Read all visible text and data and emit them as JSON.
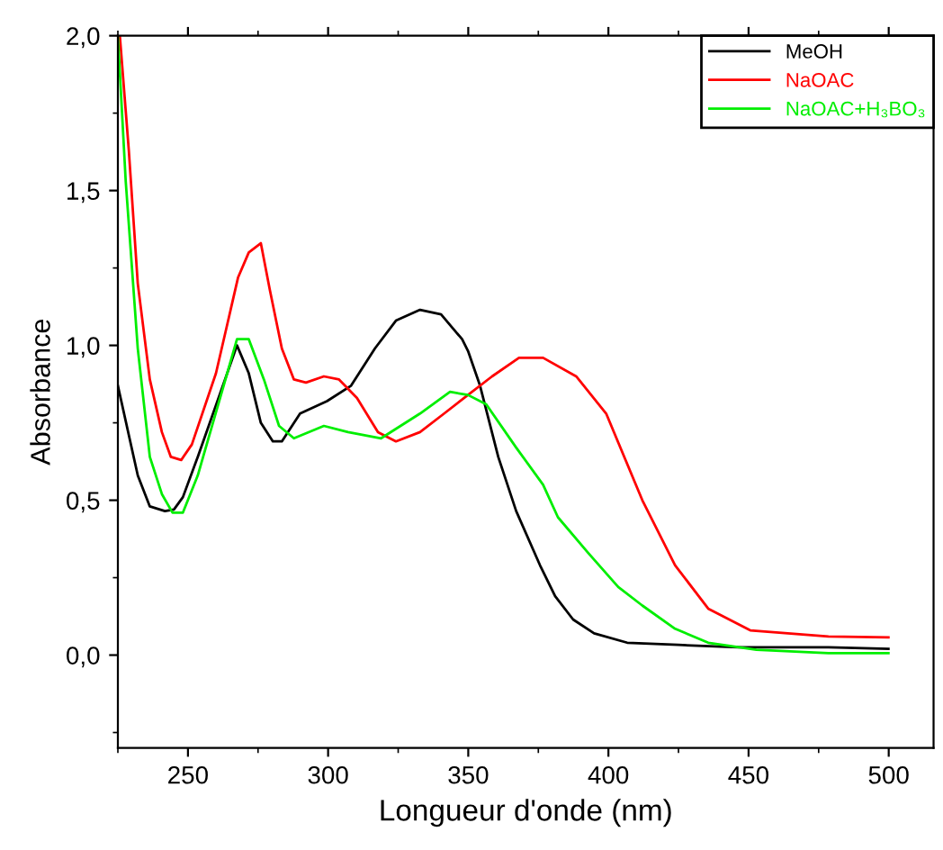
{
  "chart_data": {
    "type": "line",
    "xlabel": "Longueur d'onde (nm)",
    "ylabel": "Absorbance",
    "xlim": [
      225,
      516
    ],
    "ylim": [
      -0.3,
      2.0
    ],
    "xticks": [
      250,
      300,
      350,
      400,
      450,
      500
    ],
    "yticks": [
      {
        "value": 0.0,
        "label": "0,0"
      },
      {
        "value": 0.5,
        "label": "0,5"
      },
      {
        "value": 1.0,
        "label": "1,0"
      },
      {
        "value": 1.5,
        "label": "1,5"
      },
      {
        "value": 2.0,
        "label": "2,0"
      }
    ],
    "grid": false,
    "legend": "top right",
    "marker": "none",
    "line_style": "solid",
    "series": [
      {
        "name": "MeOH",
        "color": "#000000",
        "x": [
          225.0,
          232.1,
          236.4,
          241.8,
          245,
          248.2,
          253.5,
          267.5,
          271.7,
          276,
          280.3,
          283.5,
          290,
          299.6,
          308.2,
          316.7,
          324.2,
          332.8,
          340.3,
          347.8,
          350,
          354.2,
          360.7,
          367.1,
          375.6,
          381,
          387.4,
          394.9,
          406.7,
          424.9,
          446.3,
          478.5,
          499.9
        ],
        "values": [
          0.87,
          0.58,
          0.48,
          0.465,
          0.47,
          0.51,
          0.64,
          1.0,
          0.91,
          0.75,
          0.69,
          0.69,
          0.78,
          0.82,
          0.87,
          0.99,
          1.08,
          1.115,
          1.1,
          1.02,
          0.98,
          0.87,
          0.64,
          0.465,
          0.29,
          0.19,
          0.115,
          0.07,
          0.04,
          0.033,
          0.025,
          0.025,
          0.02
        ]
      },
      {
        "name": "NaOAC",
        "color": "#ff0000",
        "x": [
          225.7,
          228.9,
          232.1,
          236.4,
          240.7,
          243.9,
          247.6,
          251.4,
          260,
          267.9,
          271.7,
          276,
          279.2,
          283.5,
          287.8,
          292.1,
          298.5,
          303.9,
          310.3,
          317.8,
          324.2,
          332.8,
          341.4,
          349.9,
          358.5,
          368.1,
          376.7,
          388.5,
          399.2,
          412.1,
          423.8,
          435.6,
          450.6,
          478.5,
          499.9
        ],
        "values": [
          2.0,
          1.63,
          1.2,
          0.89,
          0.72,
          0.64,
          0.63,
          0.68,
          0.91,
          1.22,
          1.3,
          1.33,
          1.18,
          0.99,
          0.89,
          0.88,
          0.9,
          0.89,
          0.83,
          0.72,
          0.69,
          0.72,
          0.78,
          0.84,
          0.9,
          0.96,
          0.96,
          0.9,
          0.78,
          0.5,
          0.29,
          0.15,
          0.08,
          0.06,
          0.057
        ]
      },
      {
        "name": "NaOAC+H₃BO₃",
        "color": "#00ee00",
        "x": [
          225.0,
          227.8,
          232.1,
          236.4,
          240.7,
          244.5,
          248.2,
          253.5,
          267.5,
          271.7,
          277.1,
          282.5,
          287.8,
          298.5,
          307.1,
          318.9,
          332.8,
          343.5,
          349.9,
          356.4,
          367.1,
          376.7,
          382,
          392.8,
          403.5,
          412.1,
          423.8,
          435.6,
          452.8,
          478.5,
          499.9
        ],
        "values": [
          2.0,
          1.53,
          0.99,
          0.64,
          0.52,
          0.46,
          0.46,
          0.58,
          1.02,
          1.02,
          0.89,
          0.74,
          0.7,
          0.74,
          0.72,
          0.7,
          0.78,
          0.85,
          0.84,
          0.81,
          0.67,
          0.55,
          0.445,
          0.33,
          0.22,
          0.16,
          0.085,
          0.04,
          0.017,
          0.006,
          0.006
        ]
      }
    ]
  }
}
